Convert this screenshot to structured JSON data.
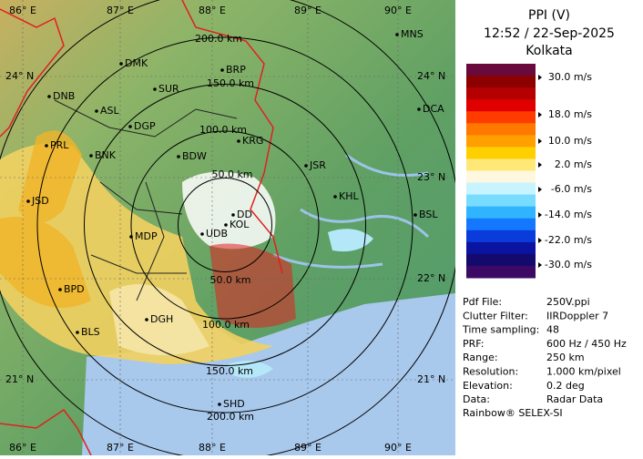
{
  "panel": {
    "title_lines": [
      "PPI (V)",
      "12:52 / 22-Sep-2025",
      "Kolkata"
    ],
    "colorbar": {
      "colors": [
        "#6a0a3c",
        "#8c0000",
        "#b40000",
        "#e00000",
        "#ff3c00",
        "#ff7800",
        "#ffa000",
        "#ffd000",
        "#ffe878",
        "#fff8e0",
        "#c8f4ff",
        "#78dcff",
        "#30b4ff",
        "#1478ff",
        "#0a3cdc",
        "#0a14a0",
        "#140a6e",
        "#3c0a64"
      ],
      "labels": [
        "30.0 m/s",
        "18.0 m/s",
        "10.0 m/s",
        "2.0 m/s",
        "-6.0 m/s",
        "-14.0 m/s",
        "-22.0 m/s",
        "-30.0 m/s"
      ]
    },
    "info": [
      [
        "Pdf File:",
        "250V.ppi"
      ],
      [
        "Clutter Filter:",
        "IIRDoppler 7"
      ],
      [
        "Time sampling:",
        "48"
      ],
      [
        "PRF:",
        "600 Hz / 450 Hz"
      ],
      [
        "Range:",
        "250 km"
      ],
      [
        "Resolution:",
        "1.000 km/pixel"
      ],
      [
        "Elevation:",
        "0.2 deg"
      ],
      [
        "Data:",
        "Radar Data"
      ]
    ],
    "footer": "Rainbow® SELEX-SI"
  },
  "map": {
    "cities": [
      "MNS",
      "DMK",
      "BRP",
      "SUR",
      "DNB",
      "ASL",
      "DGP",
      "KRG",
      "DCA",
      "PRL",
      "BNK",
      "BDW",
      "JSR",
      "KHL",
      "BSL",
      "JSD",
      "DD",
      "KOL",
      "MDP",
      "UDB",
      "BPD",
      "DGH",
      "BLS",
      "SHD"
    ],
    "range_labels": [
      "200.0 km",
      "150.0 km",
      "100.0 km",
      "50.0 km",
      "50.0 km",
      "100.0 km",
      "150.0 km",
      "200.0 km"
    ],
    "top_labels": [
      "86° E",
      "87° E",
      "88° E",
      "89° E",
      "90° E"
    ],
    "bottom_labels": [
      "86° E",
      "87° E",
      "88° E",
      "89° E",
      "90° E"
    ],
    "left_labels": [
      "24° N",
      "21° N"
    ],
    "right_labels": [
      "24° N",
      "23° N",
      "22° N",
      "21° N"
    ]
  }
}
